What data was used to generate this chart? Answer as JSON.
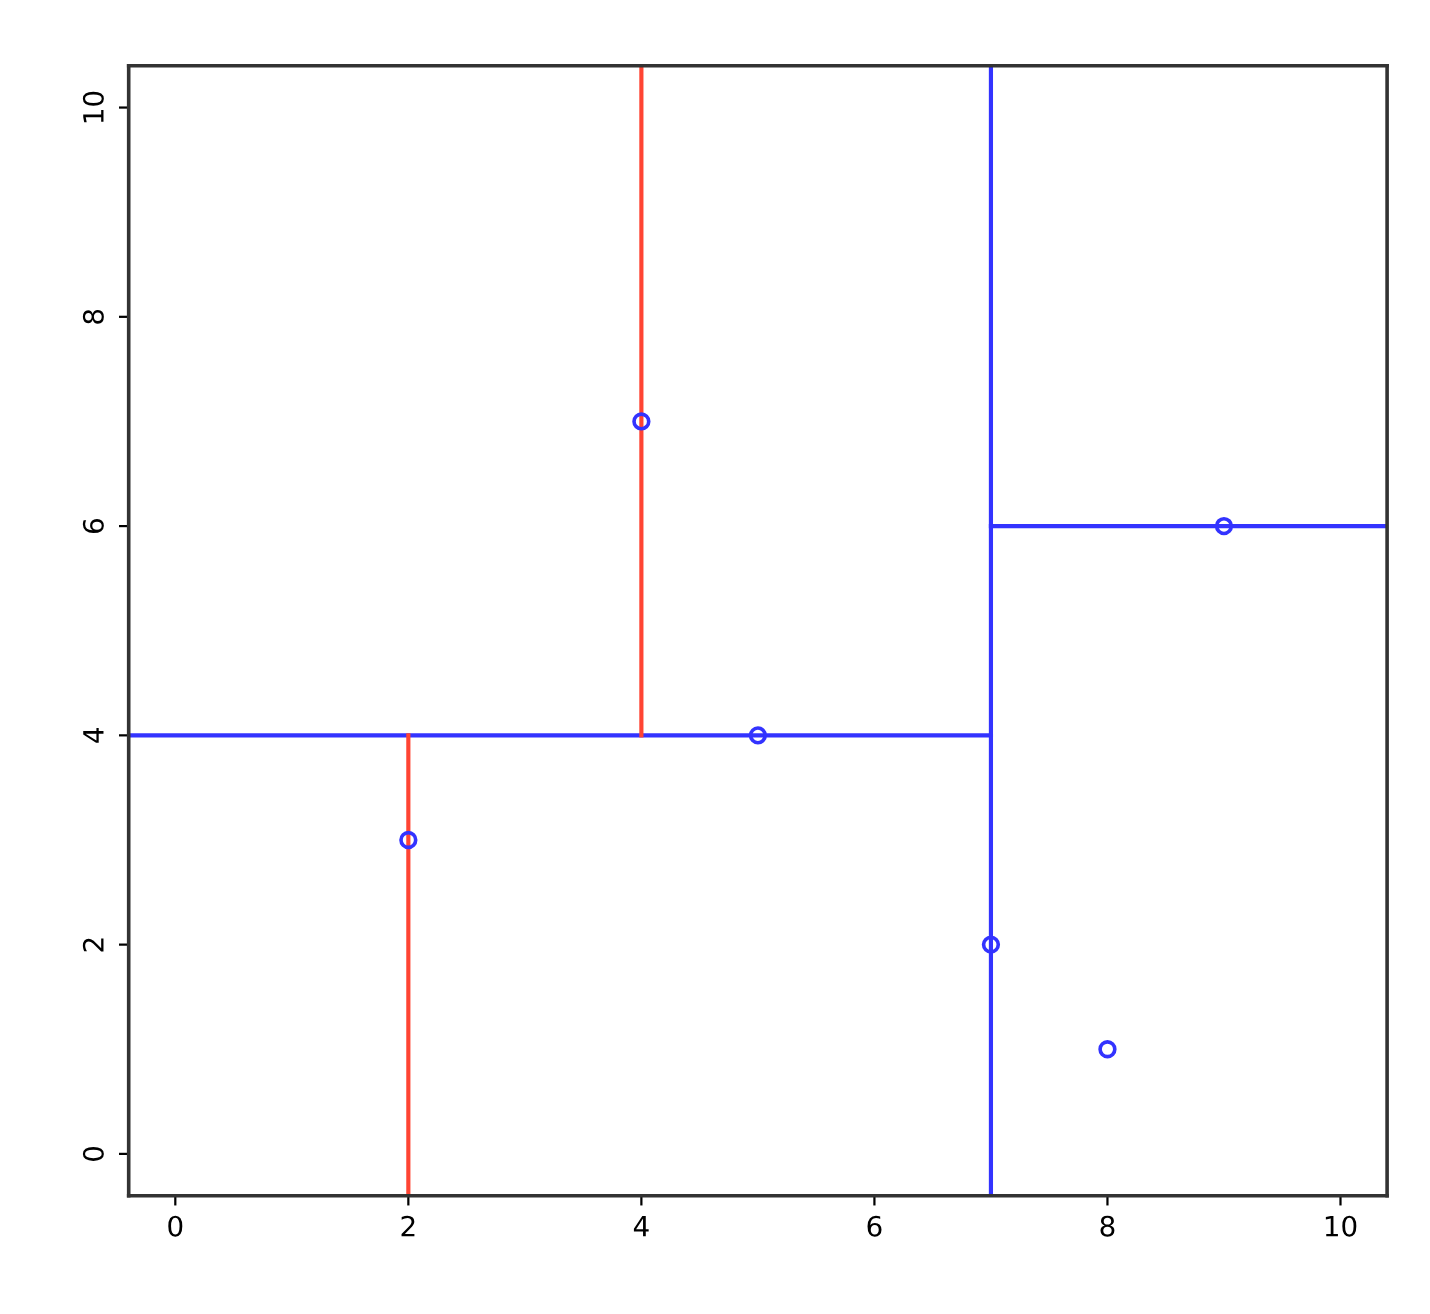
{
  "chart_data": {
    "type": "scatter",
    "xlim": [
      -0.4,
      10.4
    ],
    "ylim": [
      -0.4,
      10.4
    ],
    "xticks": [
      0,
      2,
      4,
      6,
      8,
      10
    ],
    "yticks": [
      0,
      2,
      4,
      6,
      8,
      10
    ],
    "grid": false,
    "legend": false,
    "series": [
      {
        "type": "line",
        "marker": "none",
        "color": "#3333ff",
        "x": [
          -0.4,
          7
        ],
        "values": [
          4,
          4
        ]
      },
      {
        "type": "line",
        "marker": "none",
        "color": "#ff4433",
        "x": [
          2,
          2
        ],
        "values": [
          -0.4,
          4
        ]
      },
      {
        "type": "line",
        "marker": "none",
        "color": "#ff4433",
        "x": [
          4,
          4
        ],
        "values": [
          4,
          10.4
        ]
      },
      {
        "type": "line",
        "marker": "none",
        "color": "#3333ff",
        "x": [
          7,
          10.4
        ],
        "values": [
          6,
          6
        ]
      },
      {
        "marker": "circle",
        "color": "#3333ff",
        "x": [
          2,
          4,
          5,
          7,
          8,
          9
        ],
        "values": [
          3,
          7,
          4,
          2,
          1,
          6
        ]
      }
    ],
    "ref_lines": [
      {
        "axis": "x",
        "value": 7,
        "color": "#3333ff"
      }
    ]
  }
}
